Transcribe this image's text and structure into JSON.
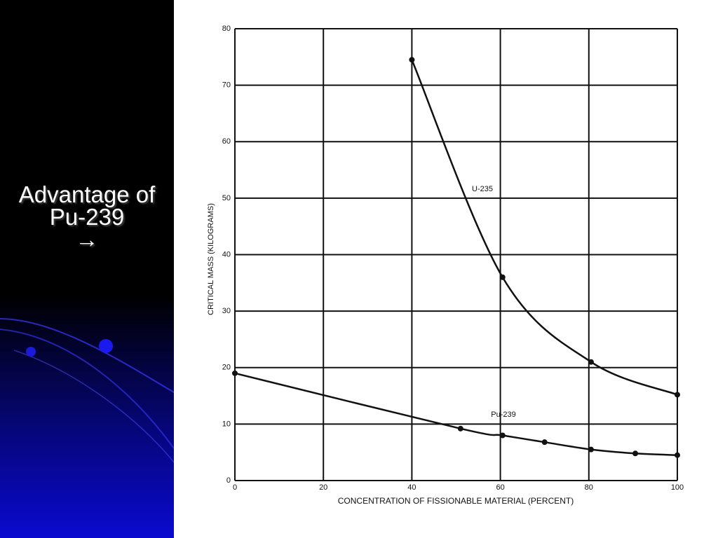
{
  "chart_data": {
    "type": "line",
    "slide_title": "Advantage of Pu-239",
    "slide_arrow": "→",
    "xlabel": "CONCENTRATION OF FISSIONABLE MATERIAL (PERCENT)",
    "ylabel": "CRITICAL MASS (KILOGRAMS)",
    "xlim": [
      0,
      100
    ],
    "xticks": [
      0,
      20,
      40,
      60,
      80,
      100
    ],
    "ylim": [
      0,
      80
    ],
    "yticks": [
      0,
      10,
      20,
      30,
      40,
      50,
      60,
      70,
      80
    ],
    "grid": true,
    "series": [
      {
        "name": "U-235",
        "color": "#111111",
        "x": [
          40,
          60.5,
          80.5,
          100
        ],
        "values": [
          74.5,
          36,
          21,
          15.2
        ]
      },
      {
        "name": "Pu-239",
        "color": "#111111",
        "x": [
          0,
          51,
          60.5,
          70,
          80.5,
          90.5,
          100
        ],
        "values": [
          19,
          9.2,
          8,
          6.8,
          5.5,
          4.8,
          4.5
        ]
      }
    ]
  }
}
